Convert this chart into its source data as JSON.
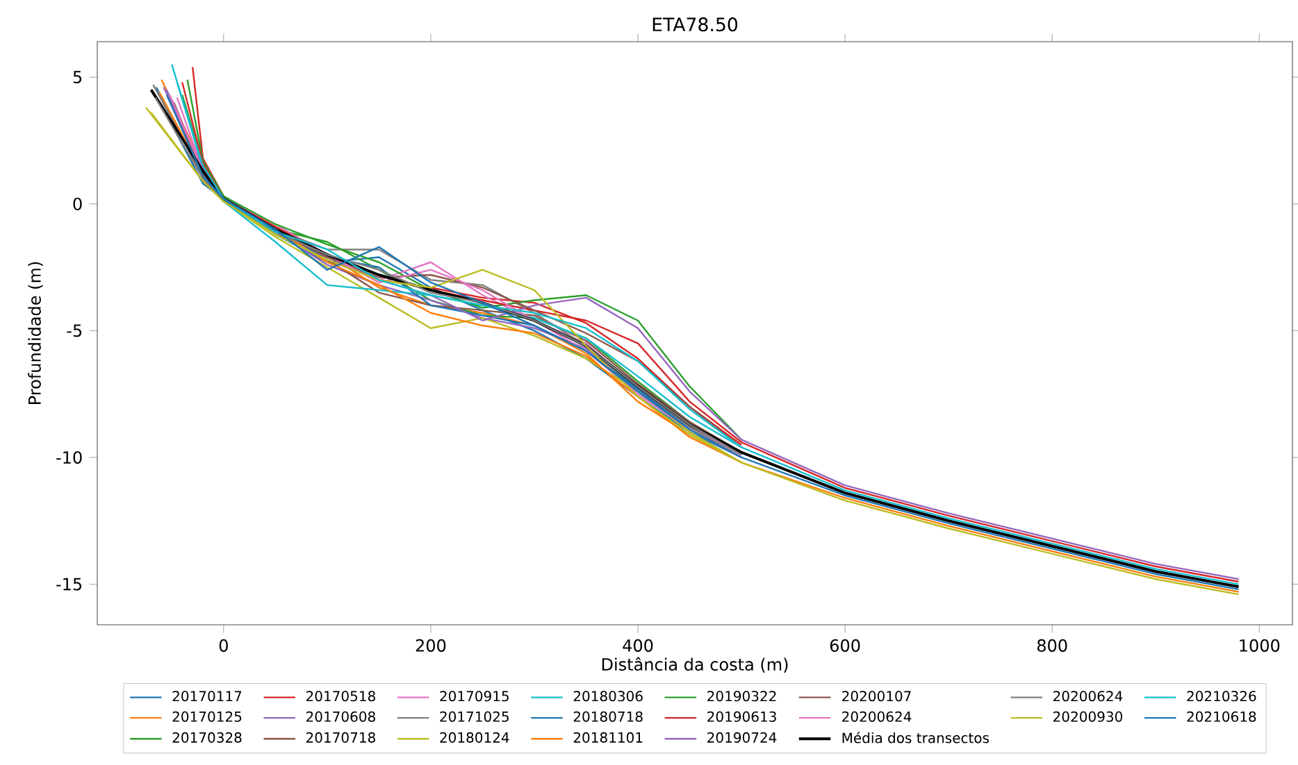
{
  "chart_data": {
    "type": "line",
    "title": "ETA78.50",
    "xlabel": "Distância da costa (m)",
    "ylabel": "Profundidade (m)",
    "xlim": [
      -122,
      1032
    ],
    "ylim": [
      -16.6,
      6.4
    ],
    "xticks": [
      0,
      200,
      400,
      600,
      800,
      1000
    ],
    "yticks": [
      -15,
      -10,
      -5,
      0,
      5
    ],
    "grid": false,
    "legend": "bottom",
    "series": [
      {
        "name": "20170117",
        "color": "#1f77b4",
        "x": [
          -65,
          -20,
          0,
          50,
          100,
          150,
          200,
          250,
          300,
          350,
          400,
          450,
          500
        ],
        "values": [
          4.6,
          1.0,
          0.2,
          -1.2,
          -2.3,
          -2.1,
          -3.3,
          -4.2,
          -5.0,
          -6.1,
          -7.6,
          -9.0,
          -10.0
        ]
      },
      {
        "name": "20170125",
        "color": "#ff7f0e",
        "x": [
          -60,
          -20,
          0,
          50,
          100,
          150,
          200,
          250,
          300,
          350,
          400,
          450,
          500
        ],
        "values": [
          4.9,
          1.5,
          0.3,
          -0.9,
          -2.0,
          -3.3,
          -4.0,
          -4.3,
          -4.8,
          -5.9,
          -7.8,
          -9.1,
          -10.2
        ]
      },
      {
        "name": "20170328",
        "color": "#2ca02c",
        "x": [
          -40,
          -20,
          0,
          50,
          100,
          150,
          200,
          250,
          300,
          350,
          400,
          450,
          500
        ],
        "values": [
          4.3,
          1.6,
          0.2,
          -1.0,
          -1.5,
          -2.6,
          -3.8,
          -4.4,
          -4.5,
          -5.3,
          -7.0,
          -8.6,
          -9.8
        ]
      },
      {
        "name": "20170518",
        "color": "#d62728",
        "x": [
          -30,
          -20,
          0,
          50,
          100,
          150,
          200,
          250,
          300,
          350,
          400,
          450,
          500
        ],
        "values": [
          5.4,
          1.8,
          0.3,
          -1.0,
          -2.2,
          -3.0,
          -3.3,
          -3.7,
          -3.9,
          -4.7,
          -6.1,
          -8.0,
          -9.5
        ]
      },
      {
        "name": "20170608",
        "color": "#9467bd",
        "x": [
          -55,
          -20,
          0,
          50,
          100,
          150,
          200,
          250,
          300,
          350,
          400,
          450,
          500
        ],
        "values": [
          4.5,
          1.2,
          0.2,
          -1.1,
          -2.4,
          -3.2,
          -3.8,
          -4.5,
          -4.9,
          -5.7,
          -7.4,
          -8.8,
          -9.9
        ]
      },
      {
        "name": "20170718",
        "color": "#8c564b",
        "x": [
          -50,
          -20,
          0,
          50,
          100,
          150,
          200,
          250,
          300,
          350,
          400,
          450,
          500
        ],
        "values": [
          4.1,
          1.0,
          0.1,
          -1.1,
          -2.2,
          -3.5,
          -4.0,
          -4.2,
          -4.4,
          -5.4,
          -7.1,
          -8.6,
          -9.8
        ]
      },
      {
        "name": "20170915",
        "color": "#e377c2",
        "x": [
          -45,
          -20,
          0,
          50,
          100,
          150,
          200,
          250,
          300,
          350,
          400,
          450,
          500
        ],
        "values": [
          4.2,
          1.3,
          0.2,
          -0.8,
          -2.0,
          -3.0,
          -2.3,
          -3.6,
          -4.6,
          -5.5,
          -7.3,
          -8.8,
          -9.9
        ]
      },
      {
        "name": "20171025",
        "color": "#7f7f7f",
        "x": [
          -68,
          -20,
          0,
          50,
          100,
          150,
          200,
          250,
          300,
          350,
          400,
          450,
          500
        ],
        "values": [
          4.7,
          1.1,
          0.3,
          -1.0,
          -1.8,
          -1.8,
          -3.0,
          -3.2,
          -4.3,
          -5.6,
          -7.3,
          -8.8,
          -10.0
        ]
      },
      {
        "name": "20180124",
        "color": "#bcbd22",
        "x": [
          -75,
          -20,
          0,
          50,
          100,
          150,
          200,
          250,
          300,
          350,
          400,
          450,
          500
        ],
        "values": [
          3.8,
          0.9,
          0.1,
          -1.3,
          -2.5,
          -3.7,
          -4.9,
          -4.5,
          -5.2,
          -6.1,
          -7.4,
          -9.0,
          -10.2
        ]
      },
      {
        "name": "20180306",
        "color": "#17becf",
        "x": [
          -50,
          -20,
          0,
          50,
          100,
          150,
          200,
          250,
          300,
          350,
          400,
          450,
          500
        ],
        "values": [
          5.5,
          1.4,
          0.1,
          -1.5,
          -3.2,
          -3.4,
          -3.6,
          -4.0,
          -4.5,
          -5.3,
          -6.8,
          -8.4,
          -9.6
        ]
      },
      {
        "name": "20180718",
        "color": "#1f77b4",
        "x": [
          -60,
          -20,
          0,
          50,
          100,
          150,
          200,
          250,
          300,
          350,
          400,
          450,
          500
        ],
        "values": [
          3.9,
          0.8,
          0.2,
          -1.2,
          -2.1,
          -2.5,
          -4.0,
          -4.4,
          -4.8,
          -5.8,
          -7.3,
          -8.9,
          -10.0
        ]
      },
      {
        "name": "20181101",
        "color": "#ff7f0e",
        "x": [
          -62,
          -20,
          0,
          50,
          100,
          150,
          200,
          250,
          300,
          350,
          400,
          450,
          500,
          600,
          700,
          800,
          900,
          980
        ],
        "values": [
          4.4,
          1.2,
          0.2,
          -1.0,
          -2.3,
          -3.2,
          -4.3,
          -4.8,
          -5.1,
          -6.0,
          -7.6,
          -9.2,
          -10.2,
          -11.6,
          -12.7,
          -13.7,
          -14.7,
          -15.3
        ]
      },
      {
        "name": "20190322",
        "color": "#2ca02c",
        "x": [
          -35,
          -20,
          0,
          50,
          100,
          150,
          200,
          250,
          300,
          350,
          400,
          450,
          500
        ],
        "values": [
          4.9,
          1.7,
          0.3,
          -0.8,
          -1.6,
          -2.3,
          -3.4,
          -4.1,
          -3.8,
          -3.6,
          -4.6,
          -7.2,
          -9.3
        ]
      },
      {
        "name": "20190613",
        "color": "#d62728",
        "x": [
          -40,
          -20,
          0,
          50,
          100,
          150,
          200,
          250,
          300,
          350,
          400,
          450,
          500,
          600,
          700,
          800,
          900,
          980
        ],
        "values": [
          4.8,
          1.6,
          0.2,
          -0.9,
          -2.0,
          -2.8,
          -3.4,
          -3.8,
          -4.2,
          -4.6,
          -5.5,
          -7.8,
          -9.4,
          -11.2,
          -12.3,
          -13.3,
          -14.3,
          -14.9
        ]
      },
      {
        "name": "20190724",
        "color": "#9467bd",
        "x": [
          -58,
          -20,
          0,
          50,
          100,
          150,
          200,
          250,
          300,
          350,
          400,
          450,
          500,
          600,
          700,
          800,
          900,
          980
        ],
        "values": [
          4.6,
          1.4,
          0.2,
          -1.0,
          -2.1,
          -3.0,
          -3.6,
          -4.6,
          -4.0,
          -3.7,
          -4.9,
          -7.4,
          -9.3,
          -11.1,
          -12.2,
          -13.2,
          -14.2,
          -14.8
        ]
      },
      {
        "name": "20200107",
        "color": "#8c564b",
        "x": [
          -48,
          -20,
          0,
          50,
          100,
          150,
          200,
          250,
          300,
          350,
          400,
          450,
          500
        ],
        "values": [
          4.0,
          1.2,
          0.2,
          -1.0,
          -2.1,
          -2.9,
          -2.8,
          -3.3,
          -4.2,
          -5.1,
          -6.2,
          -8.0,
          -9.6
        ]
      },
      {
        "name": "20200624",
        "color": "#e377c2",
        "x": [
          -52,
          -20,
          0,
          50,
          100,
          150,
          200,
          250,
          300,
          350,
          400,
          450,
          500
        ],
        "values": [
          4.3,
          1.3,
          0.2,
          -1.0,
          -2.0,
          -3.1,
          -2.6,
          -3.4,
          -4.6,
          -5.8,
          -7.5,
          -8.9,
          -10.0
        ]
      },
      {
        "name": "Média dos transectos",
        "color": "#000000",
        "x": [
          -70,
          -20,
          0,
          50,
          100,
          150,
          200,
          250,
          300,
          350,
          400,
          450,
          500,
          600,
          700,
          800,
          900,
          980
        ],
        "values": [
          4.5,
          1.3,
          0.2,
          -1.0,
          -2.0,
          -2.8,
          -3.4,
          -3.9,
          -4.6,
          -5.6,
          -7.2,
          -8.7,
          -9.8,
          -11.4,
          -12.5,
          -13.5,
          -14.5,
          -15.1
        ]
      },
      {
        "name": "20200624",
        "color": "#7f7f7f",
        "x": [
          -66,
          -20,
          0,
          50,
          100,
          150,
          200,
          250,
          300,
          350,
          400,
          450,
          500
        ],
        "values": [
          4.2,
          1.0,
          0.2,
          -1.1,
          -2.0,
          -2.6,
          -3.5,
          -3.9,
          -4.6,
          -5.6,
          -7.2,
          -8.7,
          -9.9
        ]
      },
      {
        "name": "20200930",
        "color": "#bcbd22",
        "x": [
          -70,
          -20,
          0,
          50,
          100,
          150,
          200,
          250,
          300,
          350,
          400,
          450,
          500,
          600,
          700,
          800,
          900,
          980
        ],
        "values": [
          3.6,
          0.9,
          0.1,
          -1.2,
          -2.2,
          -3.0,
          -3.3,
          -2.6,
          -3.4,
          -5.6,
          -7.6,
          -9.1,
          -10.2,
          -11.7,
          -12.8,
          -13.8,
          -14.8,
          -15.4
        ]
      },
      {
        "name": "20210326",
        "color": "#17becf",
        "x": [
          -45,
          -20,
          0,
          50,
          100,
          150,
          200,
          250,
          300,
          350,
          400,
          450,
          500,
          600,
          700,
          800,
          900,
          980
        ],
        "values": [
          4.8,
          1.5,
          0.2,
          -1.1,
          -1.8,
          -3.0,
          -3.6,
          -4.0,
          -4.3,
          -4.9,
          -6.2,
          -8.1,
          -9.6,
          -11.3,
          -12.4,
          -13.4,
          -14.4,
          -15.0
        ]
      },
      {
        "name": "20210618",
        "color": "#1f77b4",
        "x": [
          -55,
          -20,
          0,
          50,
          100,
          150,
          200,
          250,
          300,
          350,
          400,
          450,
          500,
          600,
          700,
          800,
          900,
          980
        ],
        "values": [
          4.3,
          1.1,
          0.2,
          -1.0,
          -2.6,
          -1.7,
          -3.1,
          -3.9,
          -4.8,
          -5.8,
          -7.4,
          -8.9,
          -10.0,
          -11.5,
          -12.6,
          -13.6,
          -14.6,
          -15.2
        ]
      }
    ]
  }
}
